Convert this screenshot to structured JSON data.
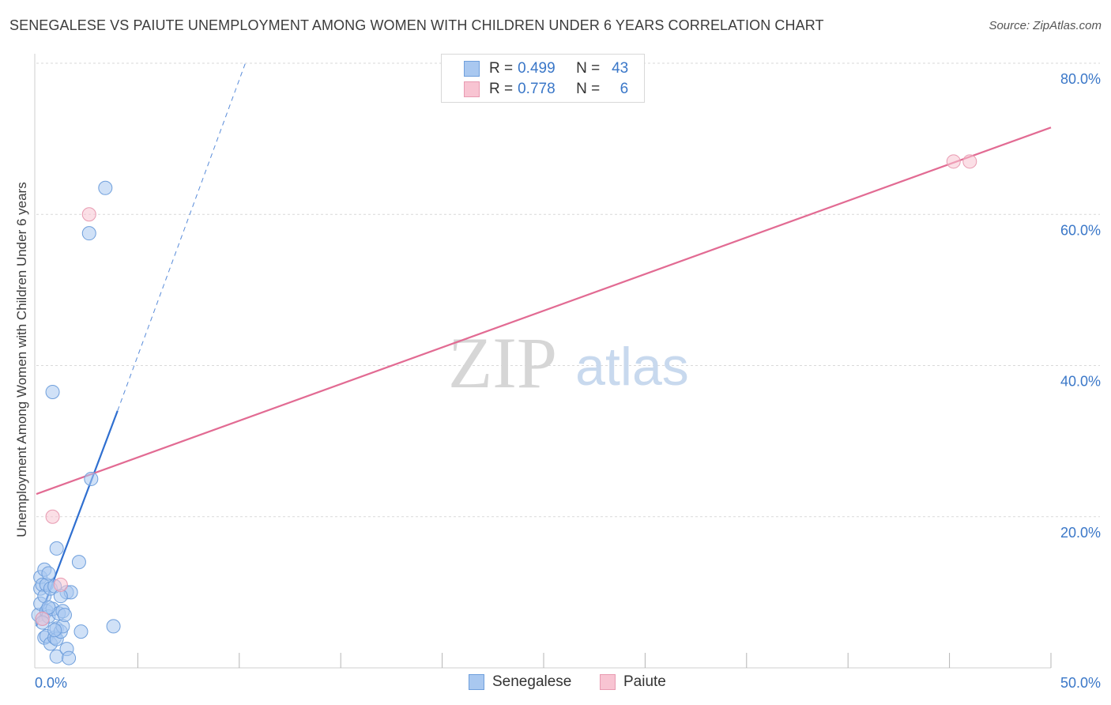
{
  "header": {
    "title": "SENEGALESE VS PAIUTE UNEMPLOYMENT AMONG WOMEN WITH CHILDREN UNDER 6 YEARS CORRELATION CHART",
    "source": "Source: ZipAtlas.com"
  },
  "watermark": {
    "zip": "ZIP",
    "atlas": "atlas"
  },
  "legend": {
    "r_label": "R =",
    "n_label": "N =",
    "rows": [
      {
        "name": "Senegalese",
        "r": "0.499",
        "n": "43"
      },
      {
        "name": "Paiute",
        "r": "0.778",
        "n": "6"
      }
    ]
  },
  "colors": {
    "senegalese_fill": "#a9c8f0",
    "senegalese_stroke": "#6f9fdc",
    "senegalese_line": "#2f6fd0",
    "paiute_fill": "#f8c4d2",
    "paiute_stroke": "#e89ab1",
    "paiute_line": "#e26b93",
    "tick_label": "#3a77c8",
    "grid": "#d9d9d9"
  },
  "chart_data": {
    "type": "scatter",
    "title": "SENEGALESE VS PAIUTE UNEMPLOYMENT AMONG WOMEN WITH CHILDREN UNDER 6 YEARS CORRELATION CHART",
    "xlabel": "",
    "ylabel": "Unemployment Among Women with Children Under 6 years",
    "xlim": [
      0,
      50
    ],
    "ylim": [
      0,
      80
    ],
    "x_tick_labels": [
      {
        "value": 0,
        "label": "0.0%"
      },
      {
        "value": 50,
        "label": "50.0%"
      }
    ],
    "x_minor_ticks": [
      5,
      10,
      15,
      20,
      25,
      30,
      35,
      40,
      45,
      50
    ],
    "y_ticks": [
      {
        "value": 20,
        "label": "20.0%"
      },
      {
        "value": 40,
        "label": "40.0%"
      },
      {
        "value": 60,
        "label": "60.0%"
      },
      {
        "value": 80,
        "label": "80.0%"
      }
    ],
    "grid": true,
    "legend_position": "top-center",
    "series": [
      {
        "name": "Senegalese",
        "points": [
          [
            0.1,
            7.0
          ],
          [
            0.2,
            8.5
          ],
          [
            0.2,
            10.5
          ],
          [
            0.2,
            12.0
          ],
          [
            0.3,
            11.0
          ],
          [
            0.3,
            6.5
          ],
          [
            0.4,
            13.0
          ],
          [
            0.4,
            9.5
          ],
          [
            0.4,
            4.0
          ],
          [
            0.5,
            7.5
          ],
          [
            0.5,
            11.0
          ],
          [
            0.5,
            4.2
          ],
          [
            0.6,
            12.5
          ],
          [
            0.6,
            6.8
          ],
          [
            0.7,
            10.5
          ],
          [
            0.7,
            3.2
          ],
          [
            0.8,
            7.8
          ],
          [
            0.8,
            36.5
          ],
          [
            0.9,
            10.8
          ],
          [
            0.9,
            4.0
          ],
          [
            1.0,
            5.2
          ],
          [
            1.0,
            15.8
          ],
          [
            1.0,
            3.8
          ],
          [
            1.0,
            1.5
          ],
          [
            1.1,
            7.2
          ],
          [
            1.2,
            4.8
          ],
          [
            1.3,
            5.5
          ],
          [
            1.3,
            7.5
          ],
          [
            1.4,
            7.0
          ],
          [
            1.5,
            2.5
          ],
          [
            1.5,
            10.0
          ],
          [
            1.6,
            1.3
          ],
          [
            1.7,
            10.0
          ],
          [
            2.1,
            14.0
          ],
          [
            2.2,
            4.8
          ],
          [
            2.6,
            57.5
          ],
          [
            2.7,
            25.0
          ],
          [
            3.4,
            63.5
          ],
          [
            3.8,
            5.5
          ],
          [
            0.3,
            6.0
          ],
          [
            0.6,
            8.0
          ],
          [
            0.9,
            5.0
          ],
          [
            1.2,
            9.5
          ]
        ]
      },
      {
        "name": "Paiute",
        "points": [
          [
            0.3,
            6.5
          ],
          [
            0.8,
            20.0
          ],
          [
            1.2,
            11.0
          ],
          [
            2.6,
            60.0
          ],
          [
            45.2,
            67.0
          ],
          [
            46.0,
            67.0
          ]
        ]
      }
    ],
    "trend_lines": [
      {
        "series": "Senegalese",
        "solid": [
          [
            0.0,
            5.5
          ],
          [
            4.0,
            34.0
          ]
        ],
        "dashed": [
          [
            4.0,
            34.0
          ],
          [
            10.3,
            80.0
          ]
        ]
      },
      {
        "series": "Paiute",
        "solid": [
          [
            0.0,
            23.0
          ],
          [
            50.0,
            71.5
          ]
        ]
      }
    ]
  }
}
